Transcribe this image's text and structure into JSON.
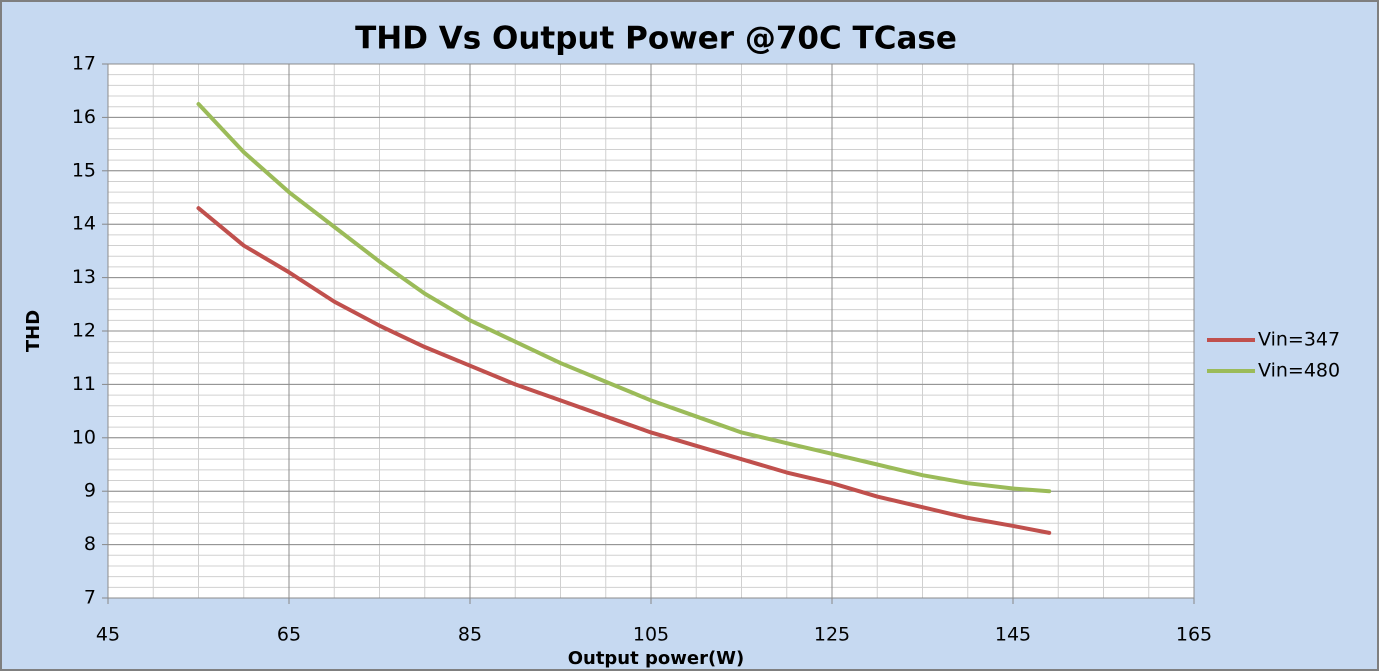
{
  "chart_data": {
    "type": "line",
    "title": "THD Vs Output Power @70C TCase",
    "x_label": "Output power(W)",
    "y_label": "THD",
    "x": [
      55,
      60,
      65,
      70,
      75,
      80,
      85,
      90,
      95,
      100,
      105,
      110,
      115,
      120,
      125,
      130,
      135,
      140,
      145,
      149
    ],
    "series": [
      {
        "name": "Vin=347",
        "color": "#c0504d",
        "values": [
          14.3,
          13.6,
          13.1,
          12.55,
          12.1,
          11.7,
          11.35,
          11.0,
          10.7,
          10.4,
          10.1,
          9.85,
          9.6,
          9.35,
          9.15,
          8.9,
          8.7,
          8.5,
          8.35,
          8.22
        ]
      },
      {
        "name": "Vin=480",
        "color": "#9bbb59",
        "values": [
          16.25,
          15.35,
          14.6,
          13.95,
          13.3,
          12.7,
          12.2,
          11.8,
          11.4,
          11.05,
          10.7,
          10.4,
          10.1,
          9.9,
          9.7,
          9.5,
          9.3,
          9.15,
          9.05,
          9.0
        ]
      }
    ],
    "xlim": [
      45,
      165
    ],
    "xticks": [
      45,
      65,
      85,
      105,
      125,
      145,
      165
    ],
    "ylim": [
      7,
      17
    ],
    "yticks": [
      7,
      8,
      9,
      10,
      11,
      12,
      13,
      14,
      15,
      16,
      17
    ],
    "grid": true,
    "legend": "right"
  }
}
